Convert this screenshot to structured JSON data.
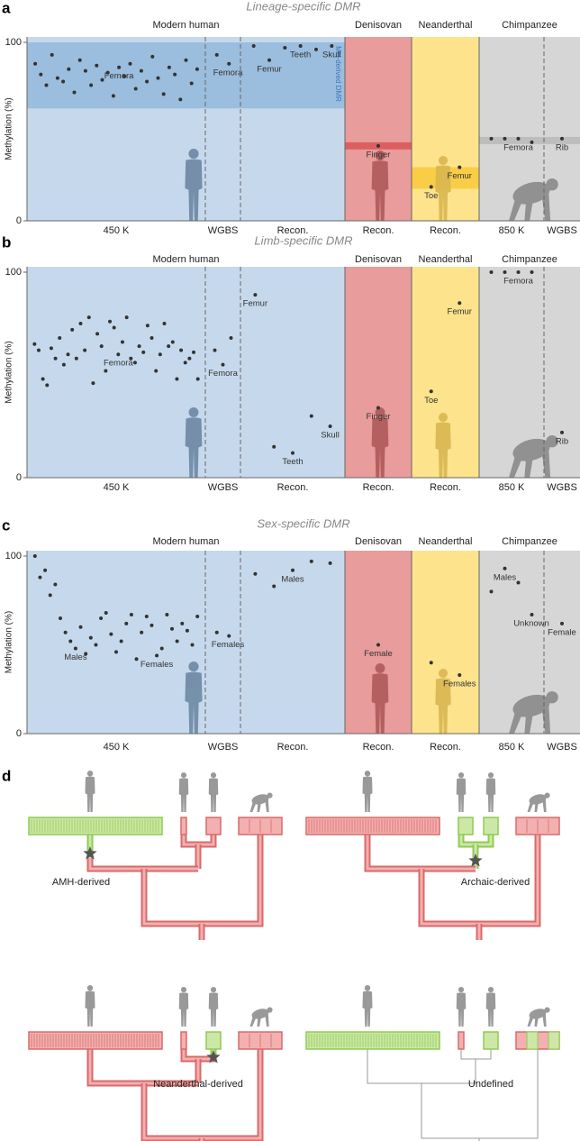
{
  "chart_data": [
    {
      "type": "scatter",
      "panel": "a",
      "title": "Lineage-specific DMR",
      "y_label": "Methylation (%)",
      "ylim": [
        0,
        100
      ],
      "yticks": [
        0,
        100
      ],
      "point_color": "#333333",
      "groups": [
        {
          "name": "Modern human"
        },
        {
          "name": "Denisovan"
        },
        {
          "name": "Neanderthal"
        },
        {
          "name": "Chimpanzee"
        }
      ],
      "band_label": "MH-derived DMR",
      "dmr_bands": [
        {
          "range": [
            63,
            100
          ]
        },
        {
          "range": [
            40,
            44
          ]
        },
        {
          "range": [
            18,
            30
          ]
        },
        {
          "range": [
            43,
            47
          ]
        }
      ],
      "sections": [
        {
          "label": "450 K",
          "values": [
            88,
            82,
            76,
            93,
            80,
            78,
            85,
            72,
            90,
            84,
            76,
            87,
            79,
            83,
            70,
            86,
            81,
            88,
            74,
            84,
            78,
            92,
            80,
            71,
            86,
            82,
            68,
            90,
            77,
            85
          ],
          "annotations": [
            "Femora"
          ]
        },
        {
          "label": "WGBS",
          "values": [
            93,
            88
          ],
          "annotations": [
            "Femora"
          ]
        },
        {
          "label": "Recon.",
          "values": [
            98,
            90,
            97,
            98,
            96,
            98
          ],
          "annotations": [
            "Femur",
            "Teeth",
            "Skull"
          ]
        },
        {
          "label": "Recon.",
          "values": [
            42
          ],
          "annotations": [
            "Finger"
          ]
        },
        {
          "label": "Recon.",
          "values": [
            19,
            30
          ],
          "annotations": [
            "Toe",
            "Femur"
          ]
        },
        {
          "label": "850 K",
          "values": [
            46,
            46,
            46,
            44
          ],
          "annotations": [
            "Femora"
          ]
        },
        {
          "label": "WGBS",
          "values": [
            46
          ],
          "annotations": [
            "Rib"
          ]
        }
      ]
    },
    {
      "type": "scatter",
      "panel": "b",
      "title": "Limb-specific DMR",
      "y_label": "Methylation (%)",
      "ylim": [
        0,
        100
      ],
      "yticks": [
        0,
        100
      ],
      "point_color": "#333333",
      "groups": [
        {
          "name": "Modern human"
        },
        {
          "name": "Denisovan"
        },
        {
          "name": "Neanderthal"
        },
        {
          "name": "Chimpanzee"
        }
      ],
      "sections": [
        {
          "label": "450 K",
          "values": [
            65,
            62,
            48,
            45,
            63,
            58,
            68,
            55,
            60,
            72,
            58,
            75,
            62,
            78,
            46,
            70,
            64,
            52,
            76,
            73,
            60,
            66,
            78,
            58,
            56,
            64,
            61,
            74,
            68,
            52,
            60,
            75,
            64,
            66,
            48,
            62,
            56,
            58,
            61,
            48
          ],
          "annotations": [
            "Femora"
          ]
        },
        {
          "label": "WGBS",
          "values": [
            62,
            55,
            68
          ],
          "annotations": [
            "Femora"
          ]
        },
        {
          "label": "Recon.",
          "values": [
            89,
            15,
            12,
            30,
            25
          ],
          "annotations": [
            "Femur",
            "Teeth",
            "Skull"
          ]
        },
        {
          "label": "Recon.",
          "values": [
            34
          ],
          "annotations": [
            "Finger"
          ]
        },
        {
          "label": "Recon.",
          "values": [
            42,
            85
          ],
          "annotations": [
            "Toe",
            "Femur"
          ]
        },
        {
          "label": "850 K",
          "values": [
            100,
            100,
            100,
            100
          ],
          "annotations": [
            "Femora"
          ]
        },
        {
          "label": "WGBS",
          "values": [
            22
          ],
          "annotations": [
            "Rib"
          ]
        }
      ]
    },
    {
      "type": "scatter",
      "panel": "c",
      "title": "Sex-specific DMR",
      "y_label": "Methylation (%)",
      "ylim": [
        0,
        100
      ],
      "yticks": [
        0,
        100
      ],
      "point_color": "#333333",
      "groups": [
        {
          "name": "Modern human"
        },
        {
          "name": "Denisovan"
        },
        {
          "name": "Neanderthal"
        },
        {
          "name": "Chimpanzee"
        }
      ],
      "sections": [
        {
          "label": "450 K",
          "values": [
            100,
            88,
            92,
            78,
            84,
            65,
            57,
            52,
            48,
            60,
            45,
            54,
            50,
            65,
            68,
            56,
            46,
            52,
            62,
            67,
            42,
            57,
            66,
            61,
            44,
            48,
            67,
            59,
            52,
            62,
            58,
            50,
            66
          ],
          "annotations": [
            "Males",
            "Females"
          ]
        },
        {
          "label": "WGBS",
          "values": [
            57,
            55
          ],
          "annotations": [
            "Females"
          ]
        },
        {
          "label": "Recon.",
          "values": [
            90,
            83,
            92,
            97,
            96
          ],
          "annotations": [
            "Males"
          ]
        },
        {
          "label": "Recon.",
          "values": [
            50
          ],
          "annotations": [
            "Female"
          ]
        },
        {
          "label": "Recon.",
          "values": [
            40,
            33
          ],
          "annotations": [
            "Females"
          ]
        },
        {
          "label": "850 K",
          "values": [
            80,
            93,
            85,
            67
          ],
          "annotations": [
            "Males",
            "Unknown"
          ]
        },
        {
          "label": "WGBS",
          "values": [
            62
          ],
          "annotations": [
            "Female"
          ]
        }
      ]
    }
  ],
  "panel_d": {
    "label": "d",
    "trees": [
      {
        "label": "AMH-derived"
      },
      {
        "label": "Archaic-derived"
      },
      {
        "label": "Neanderthal-derived"
      },
      {
        "label": "Undefined"
      }
    ]
  }
}
